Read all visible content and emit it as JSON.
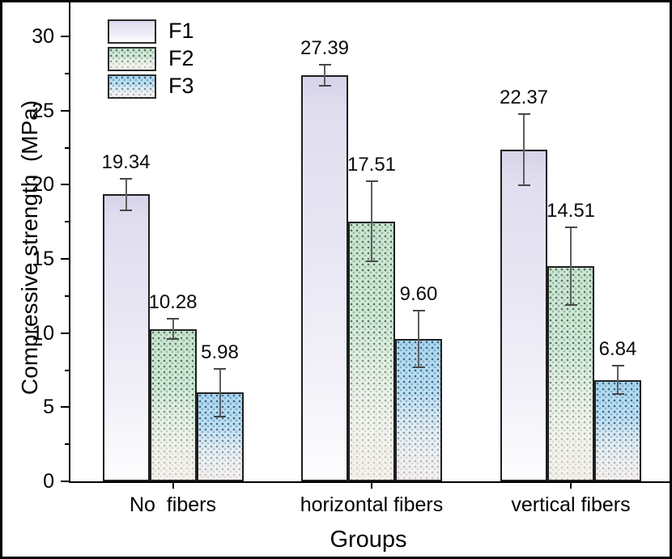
{
  "chart_data": {
    "type": "bar",
    "title": "",
    "xlabel": "Groups",
    "ylabel": "Compressive strength  (MPa)",
    "categories": [
      "No  fibers",
      "horizontal fibers",
      "vertical fibers"
    ],
    "series": [
      {
        "name": "F1",
        "values": [
          19.34,
          27.39,
          22.37
        ],
        "value_labels": [
          "19.34",
          "27.39",
          "22.37"
        ],
        "errors": [
          1.05,
          0.7,
          2.4
        ],
        "fill": "lavender-gradient",
        "color": "#d6d3e8"
      },
      {
        "name": "F2",
        "values": [
          10.28,
          17.51,
          14.51
        ],
        "value_labels": [
          "10.28",
          "17.51",
          "14.51"
        ],
        "errors": [
          0.7,
          2.7,
          2.6
        ],
        "fill": "green-stipple-fade",
        "color": "#cbe6d2"
      },
      {
        "name": "F3",
        "values": [
          5.98,
          9.6,
          6.84
        ],
        "value_labels": [
          "5.98",
          "9.60",
          "6.84"
        ],
        "errors": [
          1.6,
          1.9,
          0.95
        ],
        "fill": "blue-stipple-fade",
        "color": "#aed8f0"
      }
    ],
    "ylim": [
      0,
      32
    ],
    "yticks": [
      0,
      5,
      10,
      15,
      20,
      25,
      30
    ],
    "ytick_labels": [
      "0",
      "5",
      "10",
      "15",
      "20",
      "25",
      "30"
    ],
    "minor_ytick_step": 2.5,
    "grid": false,
    "error_bars": true,
    "legend_position": "top-left"
  },
  "legend": {
    "items": [
      "F1",
      "F2",
      "F3"
    ]
  },
  "colors": {
    "background": "#ffffff",
    "frame_border": "#000000",
    "bar_border": "#1f1f1f",
    "error_bar": "#5e5e5e",
    "text": "#000000",
    "f1_fill_top": "#d6d3e8",
    "f2_fill_top": "#cbe6d2",
    "f3_fill_top": "#aed8f0",
    "fill_bottom_fade": "#f6f1ed"
  }
}
